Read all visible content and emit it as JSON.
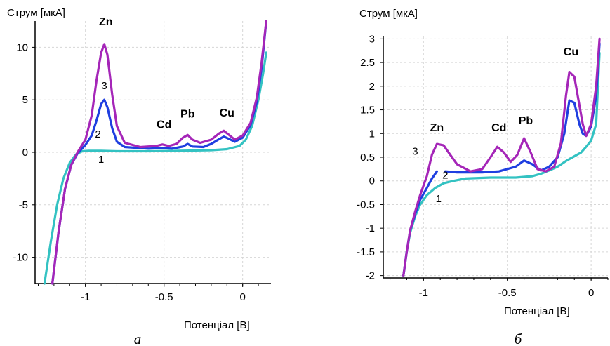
{
  "chart_data": [
    {
      "type": "line",
      "panel_label": "а",
      "ylabel": "Струм [мкА]",
      "xlabel": "Потенціал [В]",
      "xlim": [
        -1.32,
        0.18
      ],
      "ylim": [
        -12.5,
        12.5
      ],
      "x_ticks": [
        -1,
        -0.5,
        0
      ],
      "x_tick_labels": [
        "-1",
        "-0.5",
        "0"
      ],
      "y_ticks": [
        10,
        5,
        0,
        -5,
        -10
      ],
      "y_tick_labels": [
        "10",
        "5",
        "0",
        "-5",
        "-10"
      ],
      "grid": true,
      "series": [
        {
          "name": "1",
          "color": "#33c2c2",
          "x": [
            -1.26,
            -1.22,
            -1.18,
            -1.14,
            -1.1,
            -1.06,
            -1.02,
            -0.98,
            -0.9,
            -0.8,
            -0.6,
            -0.4,
            -0.2,
            -0.1,
            -0.02,
            0.02,
            0.06,
            0.1,
            0.13,
            0.15
          ],
          "y": [
            -12.5,
            -8.5,
            -5.0,
            -2.5,
            -1.0,
            -0.2,
            0.1,
            0.15,
            0.15,
            0.1,
            0.1,
            0.15,
            0.2,
            0.3,
            0.6,
            1.2,
            2.5,
            5.0,
            7.5,
            9.5
          ]
        },
        {
          "name": "2",
          "color": "#1f3fe0",
          "x": [
            -1.21,
            -1.17,
            -1.13,
            -1.09,
            -1.05,
            -1.0,
            -0.96,
            -0.93,
            -0.9,
            -0.88,
            -0.86,
            -0.83,
            -0.8,
            -0.75,
            -0.6,
            -0.52,
            -0.45,
            -0.38,
            -0.35,
            -0.32,
            -0.25,
            -0.2,
            -0.15,
            -0.12,
            -0.09,
            -0.05,
            0.0,
            0.05,
            0.09,
            0.12,
            0.15
          ],
          "y": [
            -12.5,
            -7.5,
            -3.5,
            -1.2,
            -0.1,
            0.7,
            1.6,
            3.0,
            4.6,
            5.0,
            4.3,
            2.3,
            1.0,
            0.5,
            0.35,
            0.4,
            0.35,
            0.55,
            0.8,
            0.55,
            0.5,
            0.8,
            1.25,
            1.5,
            1.3,
            1.0,
            1.4,
            2.6,
            4.8,
            8.0,
            12.5
          ]
        },
        {
          "name": "3",
          "color": "#a526b8",
          "x": [
            -1.21,
            -1.17,
            -1.13,
            -1.09,
            -1.05,
            -1.0,
            -0.96,
            -0.93,
            -0.9,
            -0.88,
            -0.86,
            -0.83,
            -0.8,
            -0.75,
            -0.65,
            -0.55,
            -0.51,
            -0.47,
            -0.42,
            -0.38,
            -0.35,
            -0.32,
            -0.27,
            -0.2,
            -0.15,
            -0.12,
            -0.09,
            -0.05,
            0.0,
            0.05,
            0.09,
            0.12,
            0.15
          ],
          "y": [
            -12.5,
            -7.5,
            -3.5,
            -1.2,
            0.0,
            1.2,
            3.5,
            6.8,
            9.5,
            10.3,
            9.3,
            5.5,
            2.5,
            0.9,
            0.5,
            0.6,
            0.75,
            0.6,
            0.8,
            1.4,
            1.65,
            1.2,
            0.9,
            1.2,
            1.8,
            2.05,
            1.7,
            1.2,
            1.6,
            2.8,
            5.2,
            8.5,
            12.5
          ]
        }
      ],
      "peak_labels": [
        {
          "text": "Zn",
          "x": -0.87,
          "y": 12.1
        },
        {
          "text": "Cd",
          "x": -0.5,
          "y": 2.3
        },
        {
          "text": "Pb",
          "x": -0.35,
          "y": 3.3
        },
        {
          "text": "Cu",
          "x": -0.1,
          "y": 3.4
        }
      ],
      "curve_numbers": [
        {
          "text": "1",
          "x": -0.9,
          "y": -1.0
        },
        {
          "text": "2",
          "x": -0.92,
          "y": 1.4
        },
        {
          "text": "3",
          "x": -0.88,
          "y": 6.0
        }
      ]
    },
    {
      "type": "line",
      "panel_label": "б",
      "ylabel": "Струм [мкА]",
      "xlabel": "Потенціал [В]",
      "xlim": [
        -1.24,
        0.1
      ],
      "ylim": [
        -2.05,
        3.05
      ],
      "x_ticks": [
        -1,
        -0.5,
        0
      ],
      "x_tick_labels": [
        "-1",
        "-0.5",
        "0"
      ],
      "y_ticks": [
        3,
        2.5,
        2,
        1.5,
        1,
        0.5,
        0,
        -0.5,
        -1,
        -1.5,
        -2
      ],
      "y_tick_labels": [
        "3",
        "2.5",
        "2",
        "1.5",
        "1",
        "0.5",
        "0",
        "-0.5",
        "-1",
        "-1.5",
        "-2"
      ],
      "grid": true,
      "series": [
        {
          "name": "1",
          "color": "#33c2c2",
          "x": [
            -1.12,
            -1.1,
            -1.08,
            -1.05,
            -1.02,
            -0.98,
            -0.93,
            -0.88,
            -0.82,
            -0.75,
            -0.6,
            -0.45,
            -0.35,
            -0.3,
            -0.25,
            -0.2,
            -0.15,
            -0.1,
            -0.06,
            -0.03,
            0.0,
            0.03,
            0.05
          ],
          "y": [
            -2.0,
            -1.5,
            -1.1,
            -0.75,
            -0.5,
            -0.3,
            -0.15,
            -0.05,
            0.0,
            0.05,
            0.07,
            0.07,
            0.1,
            0.15,
            0.22,
            0.3,
            0.42,
            0.52,
            0.6,
            0.72,
            0.85,
            1.2,
            2.7
          ]
        },
        {
          "name": "2",
          "color": "#1f3fe0",
          "x": [
            -1.12,
            -1.1,
            -1.08,
            -1.05,
            -1.02,
            -0.98,
            -0.95,
            -0.92
          ],
          "y": [
            -2.0,
            -1.5,
            -1.05,
            -0.7,
            -0.4,
            -0.15,
            0.05,
            0.2
          ]
        },
        {
          "name": "2",
          "color": "#1f3fe0",
          "x": [
            -0.87,
            -0.8,
            -0.65,
            -0.55,
            -0.45,
            -0.4,
            -0.35,
            -0.3,
            -0.25,
            -0.2,
            -0.16,
            -0.13,
            -0.1,
            -0.07,
            -0.05,
            -0.03,
            0.0,
            0.03,
            0.05
          ],
          "y": [
            0.2,
            0.18,
            0.18,
            0.2,
            0.3,
            0.43,
            0.35,
            0.22,
            0.3,
            0.5,
            1.0,
            1.7,
            1.65,
            1.2,
            1.0,
            0.95,
            1.15,
            1.8,
            2.9
          ]
        },
        {
          "name": "3",
          "color": "#a526b8",
          "x": [
            -1.12,
            -1.1,
            -1.08,
            -1.05,
            -1.02,
            -0.98,
            -0.95,
            -0.92,
            -0.88,
            -0.85,
            -0.8,
            -0.72,
            -0.65,
            -0.6,
            -0.56,
            -0.52,
            -0.48,
            -0.44,
            -0.4,
            -0.36,
            -0.32,
            -0.27,
            -0.22,
            -0.18,
            -0.15,
            -0.13,
            -0.1,
            -0.07,
            -0.05,
            -0.03,
            0.0,
            0.03,
            0.05
          ],
          "y": [
            -2.0,
            -1.5,
            -1.05,
            -0.65,
            -0.3,
            0.1,
            0.55,
            0.78,
            0.75,
            0.6,
            0.35,
            0.2,
            0.25,
            0.5,
            0.72,
            0.6,
            0.4,
            0.55,
            0.9,
            0.6,
            0.25,
            0.2,
            0.3,
            0.8,
            1.8,
            2.3,
            2.2,
            1.6,
            1.2,
            0.95,
            1.2,
            2.0,
            3.0
          ]
        }
      ],
      "peak_labels": [
        {
          "text": "Zn",
          "x": -0.92,
          "y": 1.05
        },
        {
          "text": "Cd",
          "x": -0.55,
          "y": 1.05
        },
        {
          "text": "Pb",
          "x": -0.39,
          "y": 1.2
        },
        {
          "text": "Cu",
          "x": -0.12,
          "y": 2.65
        }
      ],
      "curve_numbers": [
        {
          "text": "1",
          "x": -0.91,
          "y": -0.45
        },
        {
          "text": "2",
          "x": -0.87,
          "y": 0.05
        },
        {
          "text": "3",
          "x": -1.05,
          "y": 0.55
        }
      ]
    }
  ]
}
